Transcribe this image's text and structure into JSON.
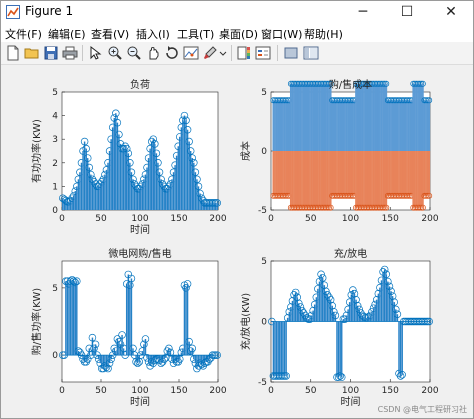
{
  "window": {
    "title": "Figure 1",
    "controls": {
      "minimize": "─",
      "maximize": "☐",
      "close": "✕"
    }
  },
  "menu": [
    "文件(F)",
    "编辑(E)",
    "查看(V)",
    "插入(I)",
    "工具(T)",
    "桌面(D)",
    "窗口(W)",
    "帮助(H)"
  ],
  "toolbar": [
    "new-icon",
    "open-icon",
    "save-icon",
    "print-icon",
    "pointer-icon",
    "zoom-in-icon",
    "zoom-out-icon",
    "pan-icon",
    "rotate-icon",
    "data-cursor-icon",
    "brush-icon",
    "colorbar-icon",
    "legend-icon",
    "hide-plot-tools-icon",
    "show-plot-tools-icon"
  ],
  "colors": {
    "blue": "#0072BD",
    "bar_blue": "#5c9bd5",
    "orange": "#D95319",
    "bar_orange": "#e8835a",
    "axes_bg": "#ffffff",
    "figure_bg": "#f0f0f0"
  },
  "watermark": "CSDN @电气工程研习社",
  "chart_data": [
    {
      "type": "bar",
      "title": "负荷",
      "xlabel": "时间",
      "ylabel": "有功功率(KW)",
      "xlim": [
        0,
        200
      ],
      "ylim": [
        0,
        5
      ],
      "xticks": [
        0,
        50,
        100,
        150,
        200
      ],
      "yticks": [
        0,
        1,
        2,
        3,
        4,
        5
      ],
      "marker": "stem-circle",
      "series": [
        {
          "x": [
            1,
            3,
            5,
            7,
            9,
            11,
            13,
            15,
            17,
            19,
            21,
            23,
            25,
            27,
            29,
            31,
            33,
            35,
            37,
            39,
            41,
            43,
            45,
            47,
            49,
            51,
            53,
            55,
            57,
            59,
            61,
            63,
            65,
            67,
            69,
            71,
            73,
            75,
            77,
            79,
            81,
            83,
            85,
            87,
            89,
            91,
            93,
            95,
            97,
            99,
            101,
            103,
            105,
            107,
            109,
            111,
            113,
            115,
            117,
            119,
            121,
            123,
            125,
            127,
            129,
            131,
            133,
            135,
            137,
            139,
            141,
            143,
            145,
            147,
            149,
            151,
            153,
            155,
            157,
            159,
            161,
            163,
            165,
            167,
            169,
            171,
            173,
            175,
            177,
            179,
            181,
            183,
            185,
            187,
            189,
            191,
            193,
            195,
            197,
            199
          ],
          "values": [
            0.5,
            0.45,
            0.4,
            0.35,
            0.35,
            0.4,
            0.5,
            0.6,
            0.8,
            1.0,
            1.3,
            1.6,
            2.0,
            2.5,
            2.9,
            2.6,
            2.2,
            1.8,
            1.5,
            1.3,
            1.2,
            1.1,
            1.0,
            1.0,
            1.1,
            1.2,
            1.3,
            1.5,
            1.7,
            2.0,
            2.5,
            3.0,
            3.5,
            3.9,
            4.1,
            3.7,
            3.2,
            2.8,
            2.6,
            2.6,
            2.7,
            2.6,
            2.4,
            2.0,
            1.6,
            1.3,
            1.1,
            1.0,
            0.9,
            0.9,
            1.0,
            1.1,
            1.3,
            1.5,
            1.8,
            2.2,
            2.6,
            2.9,
            3.0,
            2.8,
            2.4,
            2.0,
            1.6,
            1.3,
            1.1,
            1.0,
            0.9,
            0.9,
            1.0,
            1.1,
            1.3,
            1.6,
            1.9,
            2.3,
            2.7,
            3.1,
            3.5,
            3.8,
            4.0,
            3.8,
            3.4,
            2.9,
            2.5,
            2.2,
            2.0,
            1.6,
            1.3,
            1.0,
            0.7,
            0.5,
            0.4,
            0.3,
            0.3,
            0.3,
            0.3,
            0.3,
            0.3,
            0.3,
            0.3,
            0.3
          ]
        }
      ]
    },
    {
      "type": "bar",
      "title": "购/售成本",
      "xlabel": "",
      "ylabel": "成本",
      "xlim": [
        0,
        200
      ],
      "ylim": [
        -5,
        5
      ],
      "xticks": [
        0,
        50,
        100,
        150,
        200
      ],
      "yticks": [
        -5,
        0,
        5
      ],
      "marker": "stem-circle",
      "series": [
        {
          "name": "",
          "segments": [
            [
              3,
              23,
              4.3
            ],
            [
              25,
              75,
              5.7
            ],
            [
              77,
              105,
              4.3
            ],
            [
              107,
              145,
              5.7
            ],
            [
              147,
              177,
              4.3
            ],
            [
              179,
              191,
              5.7
            ],
            [
              193,
              199,
              4.3
            ]
          ]
        },
        {
          "name": "",
          "segments": [
            [
              3,
              23,
              -3.8
            ],
            [
              25,
              75,
              -4.8
            ],
            [
              77,
              105,
              -3.8
            ],
            [
              107,
              145,
              -4.8
            ],
            [
              147,
              177,
              -3.8
            ],
            [
              179,
              191,
              -4.8
            ],
            [
              193,
              199,
              -3.8
            ]
          ]
        }
      ]
    },
    {
      "type": "bar",
      "title": "微电网购/售电",
      "xlabel": "时间",
      "ylabel": "购/售功率(KW)",
      "xlim": [
        0,
        200
      ],
      "ylim": [
        -2,
        7
      ],
      "xticks": [
        0,
        50,
        100,
        150,
        200
      ],
      "yticks": [
        0,
        5
      ],
      "marker": "stem-circle",
      "series": [
        {
          "x": [
            1,
            3,
            5,
            7,
            9,
            11,
            13,
            15,
            17,
            19,
            21,
            23,
            25,
            27,
            29,
            31,
            33,
            35,
            37,
            39,
            41,
            43,
            45,
            47,
            49,
            51,
            53,
            55,
            57,
            59,
            61,
            63,
            65,
            67,
            69,
            71,
            73,
            75,
            77,
            79,
            81,
            83,
            85,
            87,
            89,
            91,
            93,
            95,
            97,
            99,
            101,
            103,
            105,
            107,
            109,
            111,
            113,
            115,
            117,
            119,
            121,
            123,
            125,
            127,
            129,
            131,
            133,
            135,
            137,
            139,
            141,
            143,
            145,
            147,
            149,
            151,
            153,
            155,
            157,
            159,
            161,
            163,
            165,
            167,
            169,
            171,
            173,
            175,
            177,
            179,
            181,
            183,
            185,
            187,
            189,
            191,
            193,
            195,
            197,
            199
          ],
          "values": [
            0,
            0,
            5.5,
            5.5,
            5.3,
            5.5,
            5.6,
            5.5,
            5.4,
            5.5,
            0.3,
            0.2,
            0,
            -0.3,
            -0.5,
            -0.5,
            -0.3,
            0.5,
            0,
            1.3,
            0.5,
            0.8,
            0,
            -0.3,
            -0.6,
            -1.0,
            -1.0,
            -0.8,
            -0.9,
            -1.0,
            -0.6,
            -0.3,
            0,
            0.5,
            0.3,
            1.2,
            1.0,
            0.8,
            1.5,
            0.5,
            0,
            5.3,
            6.0,
            5.2,
            5.7,
            0.5,
            0,
            -0.5,
            -0.6,
            -0.5,
            0,
            0.3,
            0.8,
            1.2,
            -0.2,
            -0.5,
            -0.8,
            -0.5,
            -0.6,
            -0.4,
            -0.3,
            -0.3,
            -0.4,
            -0.6,
            -0.5,
            -0.3,
            -0.2,
            0.3,
            0.5,
            0.2,
            -0.3,
            -0.6,
            -0.3,
            -0.5,
            -0.5,
            -0.3,
            0.2,
            0.5,
            5.2,
            5.0,
            5.3,
            1.0,
            0.3,
            0.5,
            -0.3,
            -0.6,
            -1.0,
            -0.8,
            -0.6,
            -0.7,
            -0.8,
            -0.6,
            -0.5,
            -0.5,
            -0.3,
            -0.2,
            0,
            0,
            0,
            0
          ]
        }
      ]
    },
    {
      "type": "bar",
      "title": "充/放电",
      "xlabel": "时间",
      "ylabel": "充/放电(KW)",
      "xlim": [
        0,
        200
      ],
      "ylim": [
        -5,
        5
      ],
      "xticks": [
        0,
        50,
        100,
        150,
        200
      ],
      "yticks": [
        -5,
        0,
        5
      ],
      "marker": "stem-circle",
      "series": [
        {
          "x": [
            1,
            3,
            5,
            7,
            9,
            11,
            13,
            15,
            17,
            19,
            21,
            23,
            25,
            27,
            29,
            31,
            33,
            35,
            37,
            39,
            41,
            43,
            45,
            47,
            49,
            51,
            53,
            55,
            57,
            59,
            61,
            63,
            65,
            67,
            69,
            71,
            73,
            75,
            77,
            79,
            81,
            83,
            85,
            87,
            89,
            91,
            93,
            95,
            97,
            99,
            101,
            103,
            105,
            107,
            109,
            111,
            113,
            115,
            117,
            119,
            121,
            123,
            125,
            127,
            129,
            131,
            133,
            135,
            137,
            139,
            141,
            143,
            145,
            147,
            149,
            151,
            153,
            155,
            157,
            159,
            161,
            163,
            165,
            167,
            169,
            171,
            173,
            175,
            177,
            179,
            181,
            183,
            185,
            187,
            189,
            191,
            193,
            195,
            197,
            199
          ],
          "values": [
            0,
            -4.5,
            -4.5,
            -4.5,
            -4.5,
            -4.5,
            -4.5,
            -4.5,
            -4.5,
            -4.5,
            0.3,
            0.8,
            1.2,
            1.7,
            2.2,
            2.4,
            2.0,
            1.5,
            1.2,
            0.9,
            0.7,
            0.5,
            0.3,
            0.2,
            0.2,
            0.5,
            0.9,
            1.4,
            2.0,
            2.7,
            3.3,
            3.9,
            3.6,
            3.0,
            2.5,
            2.2,
            2.0,
            1.8,
            1.3,
            0.8,
            0.5,
            -4.6,
            -4.6,
            -4.5,
            -4.6,
            0.2,
            0.2,
            0.5,
            1.0,
            1.6,
            2.2,
            2.6,
            2.3,
            1.8,
            1.3,
            1.0,
            0.7,
            0.5,
            0.4,
            0.3,
            0.3,
            0.4,
            0.5,
            0.8,
            1.1,
            1.4,
            1.8,
            2.3,
            2.8,
            3.4,
            4.1,
            4.3,
            3.9,
            3.3,
            2.9,
            2.5,
            2.1,
            1.6,
            1.0,
            0.6,
            -4.3,
            -4.5,
            -4.4,
            0,
            0,
            0,
            0,
            0,
            0,
            0,
            0,
            0,
            0,
            0,
            0,
            0,
            0,
            0,
            0,
            0
          ]
        }
      ]
    }
  ]
}
